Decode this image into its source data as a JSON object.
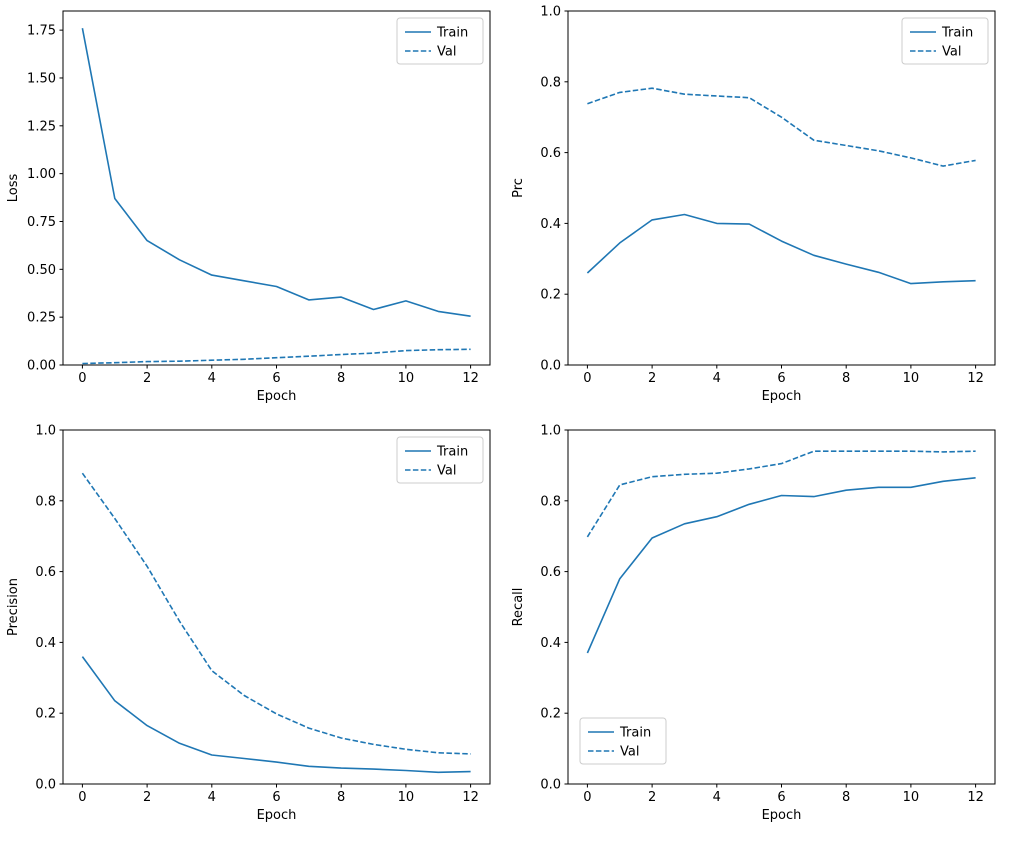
{
  "figure": {
    "background": "#ffffff",
    "line_color": "#1f77b4",
    "axis_color": "#000000",
    "legend_border": "#cccccc",
    "legend_labels": [
      "Train",
      "Val"
    ]
  },
  "chart_data": [
    {
      "type": "line",
      "title": "",
      "xlabel": "Epoch",
      "ylabel": "Loss",
      "x": [
        0,
        1,
        2,
        3,
        4,
        5,
        6,
        7,
        8,
        9,
        10,
        11,
        12
      ],
      "xlim": [
        -0.6,
        12.6
      ],
      "ylim": [
        0,
        1.85
      ],
      "xticks": [
        0,
        2,
        4,
        6,
        8,
        10,
        12
      ],
      "xtick_labels": [
        "0",
        "2",
        "4",
        "6",
        "8",
        "10",
        "12"
      ],
      "yticks": [
        0,
        0.25,
        0.5,
        0.75,
        1.0,
        1.25,
        1.5,
        1.75
      ],
      "ytick_labels": [
        "0.00",
        "0.25",
        "0.50",
        "0.75",
        "1.00",
        "1.25",
        "1.50",
        "1.75"
      ],
      "grid": false,
      "legend_position": "upper-right",
      "series": [
        {
          "name": "Train",
          "style": "solid",
          "values": [
            1.76,
            0.87,
            0.65,
            0.55,
            0.47,
            0.44,
            0.41,
            0.34,
            0.355,
            0.29,
            0.335,
            0.28,
            0.255
          ]
        },
        {
          "name": "Val",
          "style": "dashed",
          "values": [
            0.008,
            0.012,
            0.018,
            0.02,
            0.025,
            0.03,
            0.038,
            0.046,
            0.055,
            0.062,
            0.075,
            0.08,
            0.082
          ]
        }
      ]
    },
    {
      "type": "line",
      "title": "",
      "xlabel": "Epoch",
      "ylabel": "Prc",
      "x": [
        0,
        1,
        2,
        3,
        4,
        5,
        6,
        7,
        8,
        9,
        10,
        11,
        12
      ],
      "xlim": [
        -0.6,
        12.6
      ],
      "ylim": [
        0,
        1.0
      ],
      "xticks": [
        0,
        2,
        4,
        6,
        8,
        10,
        12
      ],
      "xtick_labels": [
        "0",
        "2",
        "4",
        "6",
        "8",
        "10",
        "12"
      ],
      "yticks": [
        0,
        0.2,
        0.4,
        0.6,
        0.8,
        1.0
      ],
      "ytick_labels": [
        "0.0",
        "0.2",
        "0.4",
        "0.6",
        "0.8",
        "1.0"
      ],
      "grid": false,
      "legend_position": "upper-right",
      "series": [
        {
          "name": "Train",
          "style": "solid",
          "values": [
            0.26,
            0.345,
            0.41,
            0.425,
            0.4,
            0.398,
            0.35,
            0.31,
            0.285,
            0.262,
            0.23,
            0.235,
            0.238
          ]
        },
        {
          "name": "Val",
          "style": "dashed",
          "values": [
            0.738,
            0.77,
            0.782,
            0.765,
            0.76,
            0.755,
            0.7,
            0.635,
            0.62,
            0.605,
            0.585,
            0.562,
            0.578
          ]
        }
      ]
    },
    {
      "type": "line",
      "title": "",
      "xlabel": "Epoch",
      "ylabel": "Precision",
      "x": [
        0,
        1,
        2,
        3,
        4,
        5,
        6,
        7,
        8,
        9,
        10,
        11,
        12
      ],
      "xlim": [
        -0.6,
        12.6
      ],
      "ylim": [
        0,
        1.0
      ],
      "xticks": [
        0,
        2,
        4,
        6,
        8,
        10,
        12
      ],
      "xtick_labels": [
        "0",
        "2",
        "4",
        "6",
        "8",
        "10",
        "12"
      ],
      "yticks": [
        0,
        0.2,
        0.4,
        0.6,
        0.8,
        1.0
      ],
      "ytick_labels": [
        "0.0",
        "0.2",
        "0.4",
        "0.6",
        "0.8",
        "1.0"
      ],
      "grid": false,
      "legend_position": "upper-right",
      "series": [
        {
          "name": "Train",
          "style": "solid",
          "values": [
            0.36,
            0.235,
            0.165,
            0.115,
            0.082,
            0.072,
            0.062,
            0.05,
            0.045,
            0.042,
            0.038,
            0.033,
            0.035
          ]
        },
        {
          "name": "Val",
          "style": "dashed",
          "values": [
            0.878,
            0.75,
            0.615,
            0.46,
            0.32,
            0.25,
            0.198,
            0.158,
            0.13,
            0.112,
            0.098,
            0.088,
            0.085
          ]
        }
      ]
    },
    {
      "type": "line",
      "title": "",
      "xlabel": "Epoch",
      "ylabel": "Recall",
      "x": [
        0,
        1,
        2,
        3,
        4,
        5,
        6,
        7,
        8,
        9,
        10,
        11,
        12
      ],
      "xlim": [
        -0.6,
        12.6
      ],
      "ylim": [
        0,
        1.0
      ],
      "xticks": [
        0,
        2,
        4,
        6,
        8,
        10,
        12
      ],
      "xtick_labels": [
        "0",
        "2",
        "4",
        "6",
        "8",
        "10",
        "12"
      ],
      "yticks": [
        0,
        0.2,
        0.4,
        0.6,
        0.8,
        1.0
      ],
      "ytick_labels": [
        "0.0",
        "0.2",
        "0.4",
        "0.6",
        "0.8",
        "1.0"
      ],
      "grid": false,
      "legend_position": "lower-left",
      "series": [
        {
          "name": "Train",
          "style": "solid",
          "values": [
            0.37,
            0.58,
            0.695,
            0.735,
            0.755,
            0.79,
            0.815,
            0.812,
            0.83,
            0.838,
            0.838,
            0.855,
            0.865
          ]
        },
        {
          "name": "Val",
          "style": "dashed",
          "values": [
            0.698,
            0.845,
            0.868,
            0.875,
            0.878,
            0.89,
            0.905,
            0.94,
            0.94,
            0.94,
            0.94,
            0.938,
            0.94
          ]
        }
      ]
    }
  ]
}
